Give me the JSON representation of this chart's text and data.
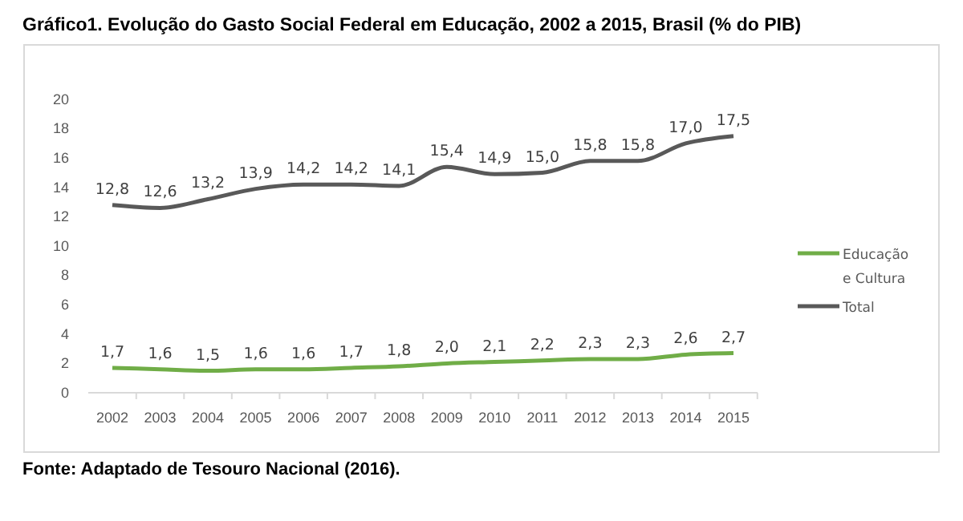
{
  "chart_data": {
    "type": "line",
    "title": "Gráfico1. Evolução do Gasto Social Federal em Educação, 2002 a 2015, Brasil (% do PIB)",
    "categories": [
      "2002",
      "2003",
      "2004",
      "2005",
      "2006",
      "2007",
      "2008",
      "2009",
      "2010",
      "2011",
      "2012",
      "2013",
      "2014",
      "2015"
    ],
    "series": [
      {
        "name": "Educação e Cultura",
        "color": "#70ad47",
        "values": [
          1.7,
          1.6,
          1.5,
          1.6,
          1.6,
          1.7,
          1.8,
          2.0,
          2.1,
          2.2,
          2.3,
          2.3,
          2.6,
          2.7
        ],
        "value_labels": [
          "1,7",
          "1,6",
          "1,5",
          "1,6",
          "1,6",
          "1,7",
          "1,8",
          "2,0",
          "2,1",
          "2,2",
          "2,3",
          "2,3",
          "2,6",
          "2,7"
        ]
      },
      {
        "name": "Total",
        "color": "#595959",
        "values": [
          12.8,
          12.6,
          13.2,
          13.9,
          14.2,
          14.2,
          14.1,
          15.4,
          14.9,
          15.0,
          15.8,
          15.8,
          17.0,
          17.5
        ],
        "value_labels": [
          "12,8",
          "12,6",
          "13,2",
          "13,9",
          "14,2",
          "14,2",
          "14,1",
          "15,4",
          "14,9",
          "15,0",
          "15,8",
          "15,8",
          "17,0",
          "17,5"
        ]
      }
    ],
    "ylim": [
      0,
      20
    ],
    "yticks": [
      0,
      2,
      4,
      6,
      8,
      10,
      12,
      14,
      16,
      18,
      20
    ],
    "grid": false,
    "legend": "right",
    "marker": "none",
    "line_style": "solid",
    "annotations": [
      "Fonte: Adaptado de Tesouro Nacional (2016)."
    ]
  }
}
